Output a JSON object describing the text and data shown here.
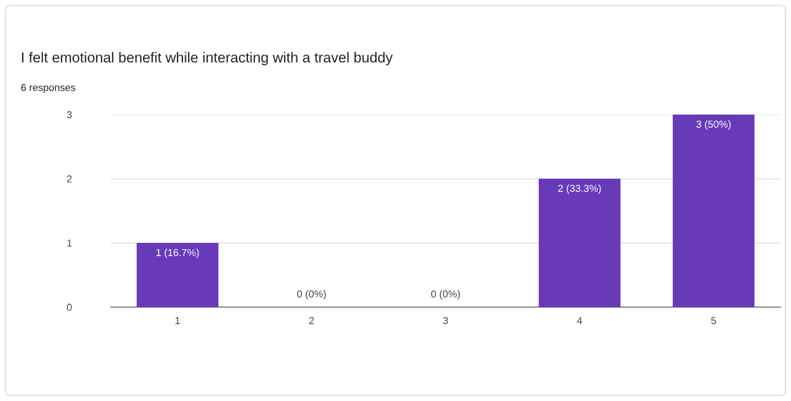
{
  "chart_data": {
    "type": "bar",
    "title": "I felt emotional benefit while interacting with a travel buddy",
    "subtitle": "6 responses",
    "categories": [
      "1",
      "2",
      "3",
      "4",
      "5"
    ],
    "values": [
      1,
      0,
      0,
      2,
      3
    ],
    "value_labels": [
      "1 (16.7%)",
      "0 (0%)",
      "0 (0%)",
      "2 (33.3%)",
      "3 (50%)"
    ],
    "color": "#673ab7",
    "ylim": [
      0,
      3
    ],
    "yticks": [
      0,
      1,
      2,
      3
    ],
    "grid": "y",
    "legend": false
  }
}
